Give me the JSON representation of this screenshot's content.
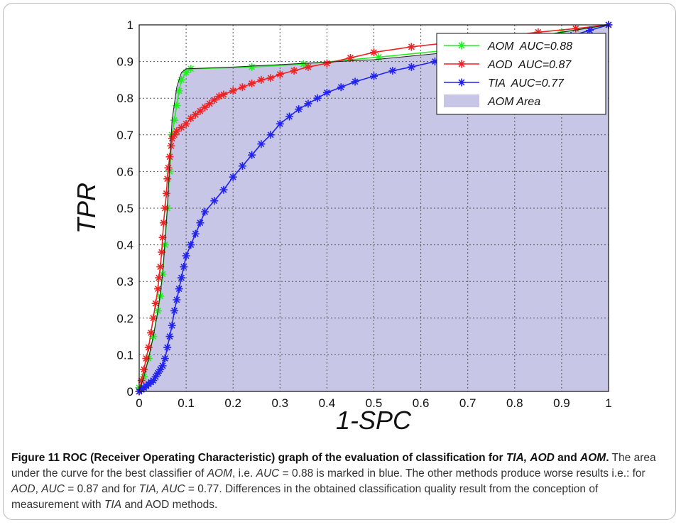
{
  "chart_data": {
    "type": "line",
    "xlabel": "1-SPC",
    "ylabel": "TPR",
    "xlim": [
      0,
      1
    ],
    "ylim": [
      0,
      1
    ],
    "xticks": [
      "0",
      "0.1",
      "0.2",
      "0.3",
      "0.4",
      "0.5",
      "0.6",
      "0.7",
      "0.8",
      "0.9",
      "1"
    ],
    "yticks": [
      "0",
      "0.1",
      "0.2",
      "0.3",
      "0.4",
      "0.5",
      "0.6",
      "0.7",
      "0.8",
      "0.9",
      "1"
    ],
    "grid": true,
    "legend_position": "top-right",
    "area": {
      "name": "AOM Area",
      "color": "#c7c6e6",
      "x": [
        0,
        0.01,
        0.02,
        0.03,
        0.04,
        0.05,
        0.06,
        0.07,
        0.08,
        0.09,
        0.1,
        0.2,
        0.5,
        0.7,
        0.85,
        1
      ],
      "y": [
        0,
        0.04,
        0.09,
        0.15,
        0.22,
        0.32,
        0.5,
        0.74,
        0.83,
        0.87,
        0.88,
        0.885,
        0.905,
        0.93,
        0.97,
        1
      ]
    },
    "series": [
      {
        "name": "AOM  AUC=0.88",
        "color": "#22ee22",
        "x": [
          0,
          0.01,
          0.02,
          0.03,
          0.04,
          0.045,
          0.05,
          0.055,
          0.06,
          0.065,
          0.07,
          0.075,
          0.08,
          0.085,
          0.09,
          0.1,
          0.11,
          0.24,
          0.35,
          0.51,
          0.65,
          0.8,
          0.9,
          1
        ],
        "y": [
          0.01,
          0.04,
          0.09,
          0.15,
          0.22,
          0.26,
          0.32,
          0.4,
          0.5,
          0.6,
          0.7,
          0.74,
          0.78,
          0.82,
          0.85,
          0.87,
          0.88,
          0.885,
          0.893,
          0.912,
          0.93,
          0.96,
          0.98,
          1
        ]
      },
      {
        "name": "AOD  AUC=0.87",
        "color": "#ee2222",
        "x": [
          0,
          0.005,
          0.01,
          0.015,
          0.02,
          0.025,
          0.03,
          0.035,
          0.04,
          0.042,
          0.045,
          0.048,
          0.05,
          0.052,
          0.055,
          0.058,
          0.06,
          0.062,
          0.065,
          0.068,
          0.07,
          0.075,
          0.08,
          0.09,
          0.1,
          0.11,
          0.12,
          0.13,
          0.14,
          0.15,
          0.16,
          0.17,
          0.18,
          0.2,
          0.22,
          0.24,
          0.26,
          0.28,
          0.3,
          0.33,
          0.36,
          0.4,
          0.45,
          0.5,
          0.58,
          0.65,
          0.75,
          0.85,
          0.93,
          1
        ],
        "y": [
          0,
          0.03,
          0.06,
          0.09,
          0.12,
          0.16,
          0.2,
          0.24,
          0.28,
          0.31,
          0.34,
          0.38,
          0.42,
          0.46,
          0.5,
          0.54,
          0.58,
          0.61,
          0.64,
          0.67,
          0.69,
          0.7,
          0.71,
          0.72,
          0.73,
          0.745,
          0.755,
          0.765,
          0.775,
          0.785,
          0.795,
          0.805,
          0.81,
          0.82,
          0.83,
          0.84,
          0.85,
          0.855,
          0.865,
          0.875,
          0.885,
          0.895,
          0.91,
          0.925,
          0.94,
          0.95,
          0.965,
          0.98,
          0.99,
          1
        ]
      },
      {
        "name": "TIA  AUC=0.77",
        "color": "#2222ee",
        "x": [
          0,
          0.005,
          0.01,
          0.015,
          0.02,
          0.025,
          0.03,
          0.035,
          0.04,
          0.045,
          0.05,
          0.055,
          0.06,
          0.065,
          0.07,
          0.075,
          0.08,
          0.085,
          0.09,
          0.095,
          0.1,
          0.11,
          0.12,
          0.13,
          0.14,
          0.16,
          0.18,
          0.2,
          0.22,
          0.24,
          0.26,
          0.28,
          0.3,
          0.32,
          0.34,
          0.36,
          0.38,
          0.4,
          0.43,
          0.46,
          0.5,
          0.54,
          0.58,
          0.63,
          0.68,
          0.74,
          0.8,
          0.86,
          0.92,
          0.96,
          1
        ],
        "y": [
          0,
          0.005,
          0.01,
          0.015,
          0.02,
          0.025,
          0.03,
          0.04,
          0.05,
          0.06,
          0.07,
          0.09,
          0.12,
          0.15,
          0.18,
          0.22,
          0.25,
          0.28,
          0.31,
          0.34,
          0.37,
          0.4,
          0.43,
          0.46,
          0.49,
          0.52,
          0.55,
          0.585,
          0.615,
          0.645,
          0.675,
          0.7,
          0.73,
          0.75,
          0.77,
          0.785,
          0.8,
          0.815,
          0.83,
          0.845,
          0.86,
          0.875,
          0.885,
          0.9,
          0.91,
          0.925,
          0.94,
          0.955,
          0.97,
          0.985,
          1
        ]
      }
    ]
  },
  "caption": {
    "label": "Figure 11",
    "title_parts": [
      {
        "t": " ROC (Receiver Operating Characteristic) graph of the evaluation of classification for ",
        "i": false
      },
      {
        "t": "TIA,",
        "i": true
      },
      {
        "t": " ",
        "i": false
      },
      {
        "t": "AOD",
        "i": true
      },
      {
        "t": " and ",
        "i": false
      },
      {
        "t": "AOM",
        "i": true
      },
      {
        "t": ".",
        "i": false
      }
    ],
    "body_parts": [
      {
        "t": " The area under the curve for the best classifier of ",
        "i": false
      },
      {
        "t": "AOM",
        "i": true
      },
      {
        "t": ", i.e. ",
        "i": false
      },
      {
        "t": "AUC",
        "i": true
      },
      {
        "t": " = 0.88 is marked in blue. The other methods produce worse results i.e.: for ",
        "i": false
      },
      {
        "t": "AOD",
        "i": true
      },
      {
        "t": ", ",
        "i": false
      },
      {
        "t": "AUC",
        "i": true
      },
      {
        "t": " = 0.87 and for ",
        "i": false
      },
      {
        "t": "TIA, AUC",
        "i": true
      },
      {
        "t": " = 0.77. Differences in the obtained classification quality result from the conception of measurement with ",
        "i": false
      },
      {
        "t": "TIA",
        "i": true
      },
      {
        "t": " and AOD methods.",
        "i": false
      }
    ]
  }
}
